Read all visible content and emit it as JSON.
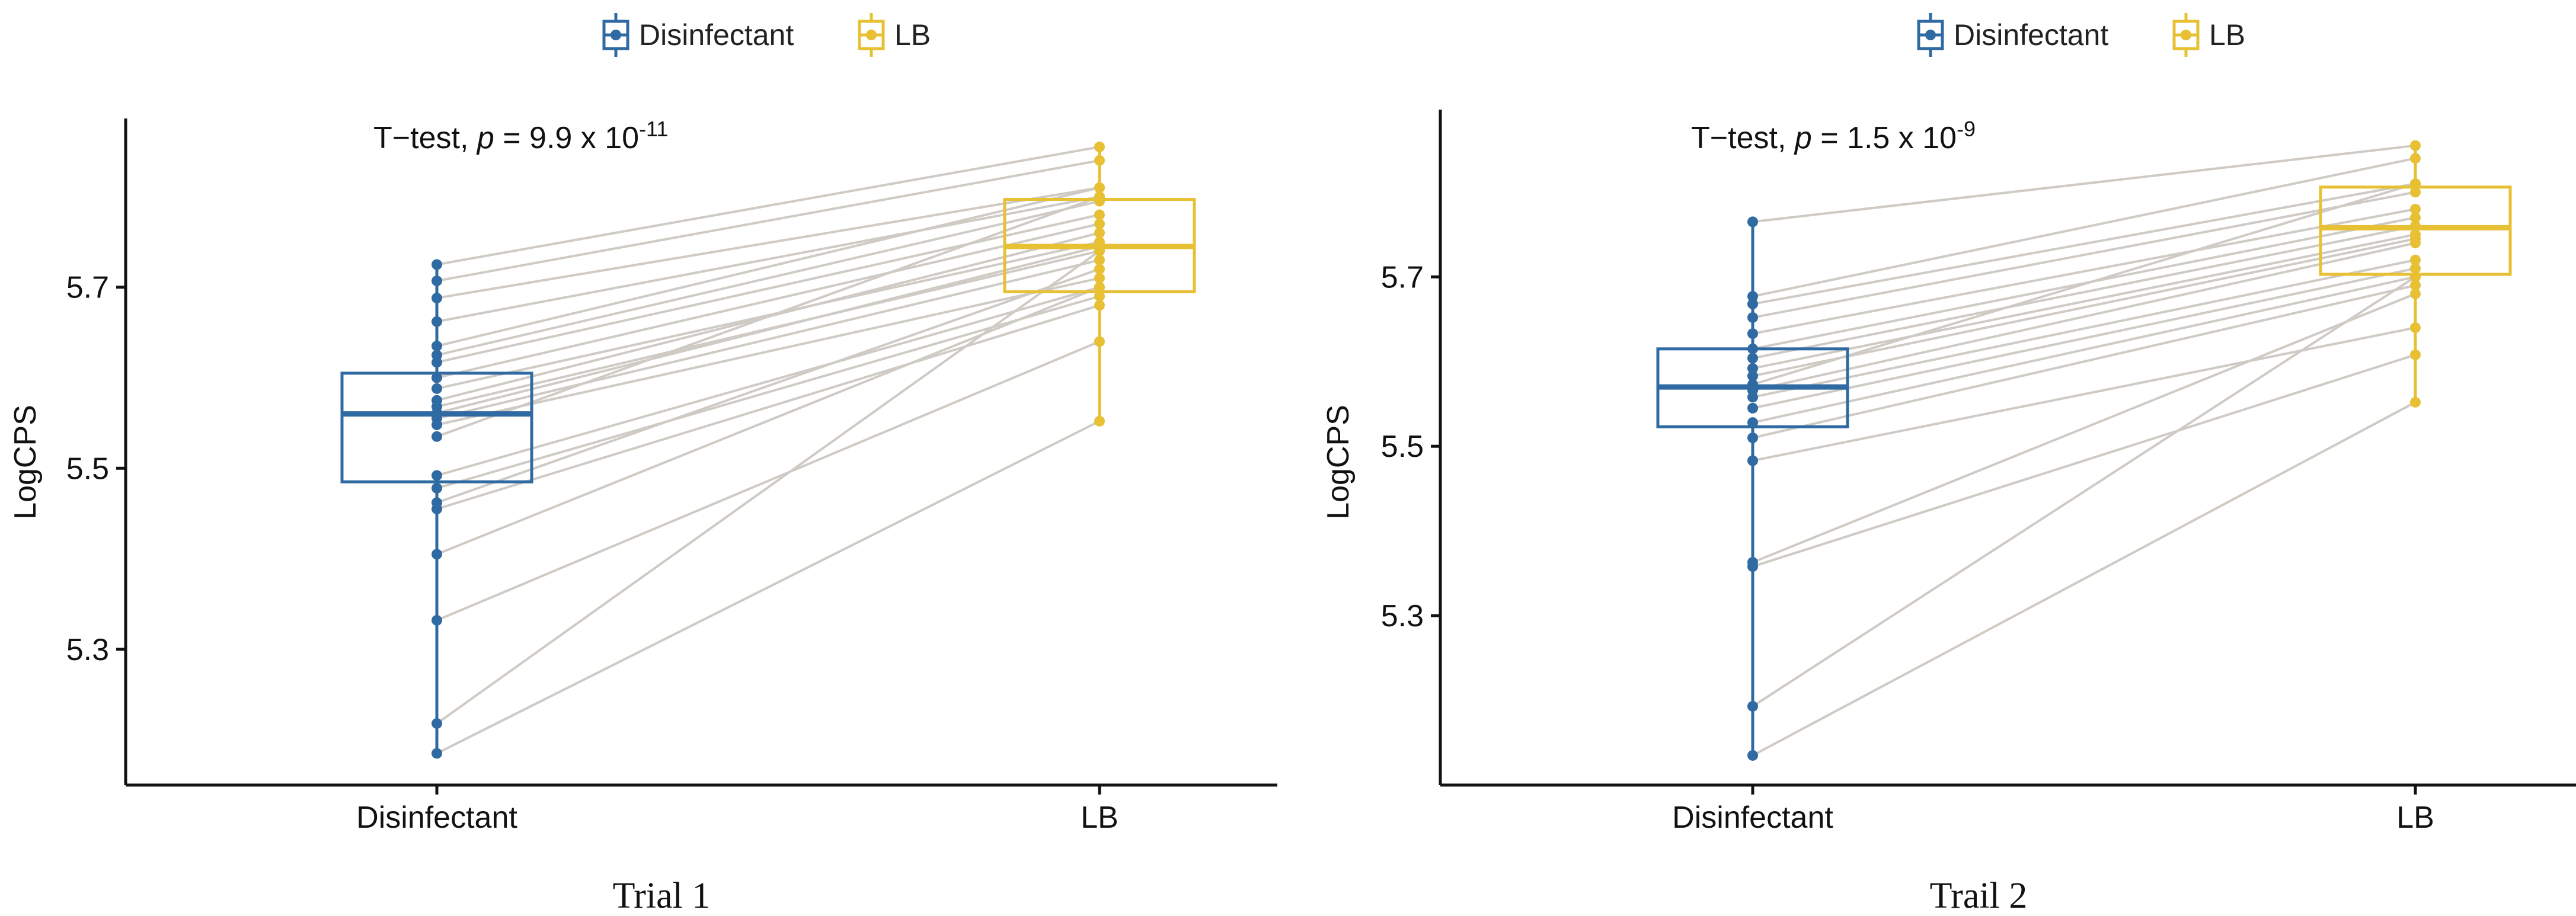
{
  "legend": {
    "title": "",
    "entries": [
      {
        "label": "Disinfectant",
        "color": "#2f6aa3"
      },
      {
        "label": "LB",
        "color": "#e8c034"
      }
    ]
  },
  "colors": {
    "pair_line": "#cfcac4",
    "axis": "#111111"
  },
  "chart_data": [
    {
      "type": "paired_boxplot",
      "caption": "Trial 1",
      "ylabel": "LogCPS",
      "xlabel": "",
      "categories": [
        "Disinfectant",
        "LB"
      ],
      "ylim": [
        5.15,
        5.87
      ],
      "yticks": [
        5.3,
        5.5,
        5.7
      ],
      "ytick_labels": [
        "5.3",
        "5.5",
        "5.7"
      ],
      "annotation": {
        "prefix": "T−test, ",
        "p_label": "p",
        "equals": " = ",
        "mantissa": "9.9 x 10",
        "exponent": "-11"
      },
      "boxes": [
        {
          "group": "Disinfectant",
          "q1": 5.485,
          "median": 5.56,
          "q3": 5.605,
          "whisker_low": 5.185,
          "whisker_high": 5.725
        },
        {
          "group": "LB",
          "q1": 5.695,
          "median": 5.745,
          "q3": 5.797,
          "whisker_low": 5.552,
          "whisker_high": 5.855
        }
      ],
      "pairs": [
        [
          5.725,
          5.855
        ],
        [
          5.707,
          5.84
        ],
        [
          5.688,
          5.81
        ],
        [
          5.662,
          5.8
        ],
        [
          5.635,
          5.81
        ],
        [
          5.625,
          5.795
        ],
        [
          5.617,
          5.78
        ],
        [
          5.6,
          5.77
        ],
        [
          5.588,
          5.75
        ],
        [
          5.575,
          5.76
        ],
        [
          5.568,
          5.74
        ],
        [
          5.561,
          5.745
        ],
        [
          5.555,
          5.73
        ],
        [
          5.548,
          5.71
        ],
        [
          5.535,
          5.8
        ],
        [
          5.492,
          5.7
        ],
        [
          5.478,
          5.69
        ],
        [
          5.462,
          5.72
        ],
        [
          5.455,
          5.68
        ],
        [
          5.405,
          5.7
        ],
        [
          5.332,
          5.64
        ],
        [
          5.218,
          5.74
        ],
        [
          5.185,
          5.552
        ]
      ]
    },
    {
      "type": "paired_boxplot",
      "caption": "Trail 2",
      "ylabel": "LogCPS",
      "xlabel": "",
      "categories": [
        "Disinfectant",
        "LB"
      ],
      "ylim": [
        5.1,
        5.88
      ],
      "yticks": [
        5.3,
        5.5,
        5.7
      ],
      "ytick_labels": [
        "5.3",
        "5.5",
        "5.7"
      ],
      "annotation": {
        "prefix": "T−test, ",
        "p_label": "p",
        "equals": " = ",
        "mantissa": "1.5 x 10",
        "exponent": "-9"
      },
      "boxes": [
        {
          "group": "Disinfectant",
          "q1": 5.523,
          "median": 5.57,
          "q3": 5.615,
          "whisker_low": 5.135,
          "whisker_high": 5.765
        },
        {
          "group": "LB",
          "q1": 5.703,
          "median": 5.758,
          "q3": 5.806,
          "whisker_low": 5.552,
          "whisker_high": 5.855
        }
      ],
      "pairs": [
        [
          5.765,
          5.855
        ],
        [
          5.677,
          5.84
        ],
        [
          5.668,
          5.81
        ],
        [
          5.652,
          5.8
        ],
        [
          5.633,
          5.78
        ],
        [
          5.615,
          5.77
        ],
        [
          5.604,
          5.76
        ],
        [
          5.592,
          5.75
        ],
        [
          5.583,
          5.745
        ],
        [
          5.573,
          5.81
        ],
        [
          5.566,
          5.74
        ],
        [
          5.558,
          5.72
        ],
        [
          5.545,
          5.71
        ],
        [
          5.528,
          5.7
        ],
        [
          5.51,
          5.69
        ],
        [
          5.483,
          5.64
        ],
        [
          5.363,
          5.68
        ],
        [
          5.358,
          5.608
        ],
        [
          5.193,
          5.7
        ],
        [
          5.135,
          5.552
        ]
      ]
    }
  ]
}
